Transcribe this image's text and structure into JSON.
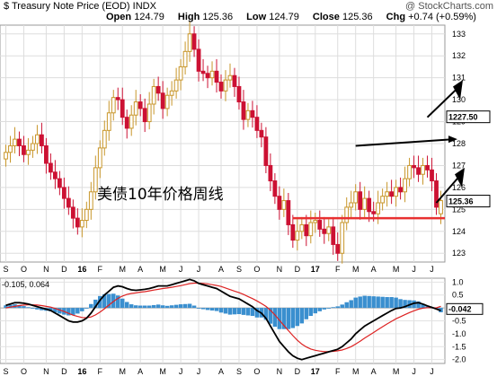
{
  "header": {
    "title": "$ Treasury Note Price (EOD)",
    "exchange": "INDX",
    "watermark": "@ StockCharts.com",
    "open_label": "Open",
    "open_value": "124.79",
    "high_label": "High",
    "high_value": "125.36",
    "low_label": "Low",
    "low_value": "124.79",
    "close_label": "Close",
    "close_value": "125.36",
    "chg_label": "Chg",
    "chg_value": "+0.74 (+0.59%)"
  },
  "annotation": "美债10年价格周线",
  "macd_label": "-0.105, 0.064",
  "price_badges": {
    "close": "125.36",
    "level": "1227.50"
  },
  "macd_badge": "-0.042",
  "colors": {
    "up": "#c8962a",
    "down": "#cc1133",
    "hline": "#e83030",
    "macd": "#000000",
    "signal": "#dd2222",
    "hist": "#3a8fcf"
  },
  "chart_data": {
    "type": "candlestick",
    "interval": "weekly",
    "price_axis": {
      "ticks": [
        123,
        124,
        125,
        126,
        127,
        128,
        129,
        130,
        131,
        132,
        133
      ],
      "labels": [
        "123",
        "124",
        "125",
        "126",
        "127",
        "128",
        "129",
        "130",
        "131",
        "132",
        "133"
      ],
      "ylim": [
        122.6,
        133.4
      ]
    },
    "x_labels": [
      "S",
      "O",
      "N",
      "D",
      "16",
      "F",
      "M",
      "A",
      "M",
      "J",
      "J",
      "A",
      "S",
      "O",
      "N",
      "D",
      "17",
      "F",
      "M",
      "A",
      "M",
      "J",
      "J"
    ],
    "x_label_weeks": [
      0,
      4,
      9,
      13,
      17,
      21,
      26,
      30,
      35,
      39,
      43,
      48,
      52,
      56,
      61,
      65,
      69,
      74,
      78,
      82,
      87,
      91,
      95
    ],
    "weeks": 98,
    "close": [
      127.6,
      127.9,
      128.2,
      127.9,
      127.5,
      127.7,
      128.0,
      128.4,
      127.9,
      127.1,
      126.7,
      126.4,
      126.0,
      125.5,
      125.1,
      124.6,
      124.2,
      124.5,
      125.0,
      125.8,
      126.9,
      127.8,
      128.6,
      129.4,
      130.1,
      130.0,
      129.2,
      128.7,
      129.3,
      129.9,
      129.6,
      129.0,
      129.8,
      130.6,
      130.3,
      129.6,
      130.2,
      130.4,
      130.9,
      131.5,
      132.2,
      133.0,
      132.3,
      131.3,
      131.2,
      131.0,
      131.3,
      130.8,
      130.4,
      130.9,
      131.1,
      130.6,
      129.9,
      129.1,
      129.5,
      129.2,
      128.6,
      128.3,
      127.0,
      126.3,
      125.6,
      125.0,
      125.4,
      124.3,
      123.6,
      124.0,
      124.3,
      123.8,
      124.4,
      124.5,
      124.1,
      123.9,
      124.2,
      123.4,
      123.0,
      124.4,
      125.1,
      125.3,
      125.8,
      125.0,
      125.5,
      124.9,
      124.8,
      125.3,
      125.6,
      125.8,
      125.6,
      126.0,
      125.8,
      126.4,
      127.0,
      126.9,
      126.6,
      127.0,
      126.8,
      126.3,
      125.1,
      125.4
    ],
    "open": [
      127.3,
      127.6,
      127.9,
      128.2,
      127.9,
      127.5,
      127.7,
      128.0,
      128.4,
      127.9,
      127.1,
      126.7,
      126.4,
      126.0,
      125.5,
      125.1,
      124.6,
      124.2,
      124.5,
      125.0,
      125.8,
      126.9,
      127.8,
      128.6,
      129.4,
      130.1,
      130.0,
      129.2,
      128.7,
      129.3,
      129.9,
      129.6,
      129.0,
      129.8,
      130.6,
      130.3,
      129.6,
      130.2,
      130.4,
      130.9,
      131.5,
      132.2,
      133.0,
      132.3,
      131.3,
      131.2,
      131.0,
      131.3,
      130.8,
      130.4,
      130.9,
      131.1,
      130.6,
      129.9,
      129.1,
      129.5,
      129.2,
      128.6,
      128.3,
      127.0,
      126.3,
      125.6,
      125.0,
      125.4,
      124.3,
      123.6,
      124.0,
      124.3,
      123.8,
      124.4,
      124.5,
      124.1,
      123.9,
      124.2,
      123.4,
      123.0,
      124.4,
      125.1,
      125.3,
      125.8,
      125.0,
      125.5,
      124.9,
      124.8,
      125.3,
      125.6,
      125.8,
      125.6,
      126.0,
      125.8,
      126.4,
      127.0,
      126.9,
      126.6,
      127.0,
      126.8,
      126.3,
      124.8
    ],
    "hlines": [
      124.6
    ],
    "macd_axis": {
      "ticks": [
        1.0,
        0.5,
        0.0,
        -0.5,
        -1.0,
        -1.5,
        -2.0
      ],
      "labels": [
        "1.0",
        "0.5",
        "0.0",
        "-0.5",
        "-1.0",
        "-1.5",
        "-2.0"
      ],
      "ylim": [
        -2.15,
        1.15
      ]
    },
    "macd": [
      0.1,
      0.15,
      0.2,
      0.2,
      0.18,
      0.15,
      0.1,
      0.05,
      0.0,
      -0.05,
      -0.1,
      -0.2,
      -0.3,
      -0.4,
      -0.5,
      -0.55,
      -0.55,
      -0.5,
      -0.4,
      -0.2,
      0.05,
      0.3,
      0.5,
      0.65,
      0.8,
      0.85,
      0.82,
      0.75,
      0.7,
      0.68,
      0.7,
      0.72,
      0.75,
      0.8,
      0.85,
      0.85,
      0.85,
      0.9,
      0.95,
      1.0,
      1.05,
      1.1,
      1.05,
      0.95,
      0.9,
      0.85,
      0.8,
      0.75,
      0.65,
      0.55,
      0.45,
      0.4,
      0.35,
      0.25,
      0.15,
      0.05,
      -0.1,
      -0.2,
      -0.4,
      -0.7,
      -1.0,
      -1.3,
      -1.5,
      -1.7,
      -1.85,
      -1.95,
      -2.0,
      -1.95,
      -1.9,
      -1.85,
      -1.8,
      -1.75,
      -1.7,
      -1.65,
      -1.6,
      -1.5,
      -1.35,
      -1.2,
      -1.0,
      -0.85,
      -0.7,
      -0.6,
      -0.5,
      -0.4,
      -0.3,
      -0.2,
      -0.1,
      -0.02,
      0.0,
      0.05,
      0.12,
      0.18,
      0.2,
      0.15,
      0.08,
      0.02,
      -0.04,
      -0.105
    ],
    "signal": [
      0.0,
      0.03,
      0.06,
      0.09,
      0.11,
      0.12,
      0.12,
      0.11,
      0.09,
      0.06,
      0.03,
      -0.02,
      -0.08,
      -0.14,
      -0.21,
      -0.28,
      -0.33,
      -0.37,
      -0.38,
      -0.35,
      -0.27,
      -0.16,
      -0.03,
      0.11,
      0.25,
      0.37,
      0.46,
      0.52,
      0.56,
      0.58,
      0.61,
      0.63,
      0.66,
      0.69,
      0.72,
      0.75,
      0.77,
      0.8,
      0.83,
      0.86,
      0.9,
      0.94,
      0.96,
      0.96,
      0.95,
      0.93,
      0.9,
      0.87,
      0.83,
      0.77,
      0.71,
      0.65,
      0.59,
      0.52,
      0.44,
      0.36,
      0.27,
      0.17,
      0.06,
      -0.09,
      -0.27,
      -0.48,
      -0.68,
      -0.88,
      -1.07,
      -1.25,
      -1.4,
      -1.51,
      -1.59,
      -1.64,
      -1.67,
      -1.69,
      -1.69,
      -1.68,
      -1.66,
      -1.63,
      -1.57,
      -1.5,
      -1.4,
      -1.29,
      -1.17,
      -1.06,
      -0.95,
      -0.84,
      -0.73,
      -0.62,
      -0.52,
      -0.42,
      -0.34,
      -0.26,
      -0.18,
      -0.11,
      -0.05,
      -0.01,
      0.01,
      0.01,
      0.0,
      0.064
    ]
  }
}
